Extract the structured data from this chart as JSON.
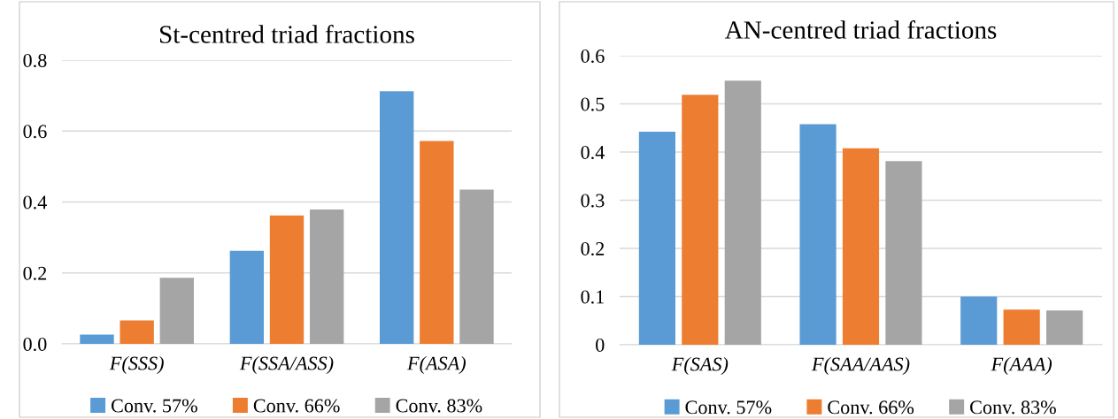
{
  "chart_data": [
    {
      "type": "bar",
      "title": "St-centred triad fractions",
      "categories": [
        "F(SSS)",
        "F(SSA/ASS)",
        "F(ASA)"
      ],
      "series": [
        {
          "name": "Conv. 57%",
          "color": "#5b9bd5",
          "values": [
            0.026,
            0.262,
            0.712
          ]
        },
        {
          "name": "Conv. 66%",
          "color": "#ed7d31",
          "values": [
            0.066,
            0.362,
            0.572
          ]
        },
        {
          "name": "Conv. 83%",
          "color": "#a5a5a5",
          "values": [
            0.186,
            0.379,
            0.435
          ]
        }
      ],
      "ylim": [
        0,
        0.8
      ],
      "yticks": [
        {
          "value": 0,
          "label": "0.0"
        },
        {
          "value": 0.2,
          "label": "0.2"
        },
        {
          "value": 0.4,
          "label": "0.4"
        },
        {
          "value": 0.6,
          "label": "0.6"
        },
        {
          "value": 0.8,
          "label": "0.8"
        }
      ],
      "grid": "y",
      "legend": "bottom"
    },
    {
      "type": "bar",
      "title": "AN-centred triad fractions",
      "categories": [
        "F(SAS)",
        "F(SAA/AAS)",
        "F(AAA)"
      ],
      "series": [
        {
          "name": "Conv. 57%",
          "color": "#5b9bd5",
          "values": [
            0.442,
            0.458,
            0.1
          ]
        },
        {
          "name": "Conv. 66%",
          "color": "#ed7d31",
          "values": [
            0.519,
            0.408,
            0.073
          ]
        },
        {
          "name": "Conv. 83%",
          "color": "#a5a5a5",
          "values": [
            0.548,
            0.381,
            0.071
          ]
        }
      ],
      "ylim": [
        0,
        0.6
      ],
      "yticks": [
        0,
        0.1,
        0.2,
        0.3,
        0.4,
        0.5,
        0.6
      ],
      "grid": "y",
      "legend": "bottom"
    }
  ]
}
